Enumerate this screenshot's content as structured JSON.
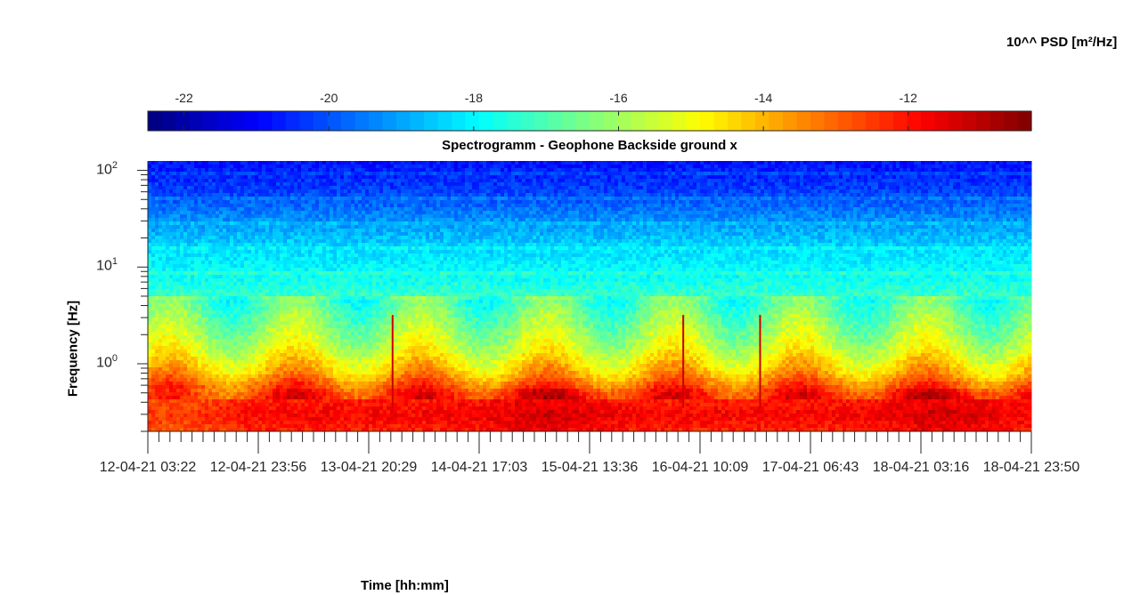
{
  "colorbar": {
    "title": "10^^ PSD [m²/Hz]",
    "ticks": [
      "-22",
      "-20",
      "-18",
      "-16",
      "-14",
      "-12"
    ],
    "tick_values": [
      -22,
      -20,
      -18,
      -16,
      -14,
      -12
    ],
    "range": [
      -22.5,
      -10.3
    ],
    "colormap": "jet"
  },
  "chart_data": {
    "type": "heatmap",
    "title": "Spectrogramm - Geophone Backside ground x",
    "xlabel": "Time [hh:mm]",
    "ylabel": "Frequency [Hz]",
    "x_tick_labels": [
      "12-04-21 03:22",
      "12-04-21 23:56",
      "13-04-21 20:29",
      "14-04-21 17:03",
      "15-04-21 13:36",
      "16-04-21 10:09",
      "17-04-21 06:43",
      "18-04-21 03:16",
      "18-04-21 23:50"
    ],
    "y_scale": "log",
    "y_ticks": [
      {
        "base": "10",
        "exp": "0",
        "value": 1
      },
      {
        "base": "10",
        "exp": "1",
        "value": 10
      },
      {
        "base": "10",
        "exp": "2",
        "value": 100
      }
    ],
    "ylim": [
      0.2,
      125
    ],
    "band_levels": [
      {
        "f_hz": 125,
        "log_psd": -20.8
      },
      {
        "f_hz": 60,
        "log_psd": -20.2
      },
      {
        "f_hz": 30,
        "log_psd": -19.2
      },
      {
        "f_hz": 15,
        "log_psd": -18.3
      },
      {
        "f_hz": 7,
        "log_psd": -17.7
      },
      {
        "f_hz": 3,
        "log_psd": -16.5
      },
      {
        "f_hz": 1.5,
        "log_psd": -15.5
      },
      {
        "f_hz": 0.8,
        "log_psd": -14.0
      },
      {
        "f_hz": 0.5,
        "log_psd": -12.3
      },
      {
        "f_hz": 0.3,
        "log_psd": -11.8
      },
      {
        "f_hz": 0.2,
        "log_psd": -12.2
      }
    ]
  }
}
